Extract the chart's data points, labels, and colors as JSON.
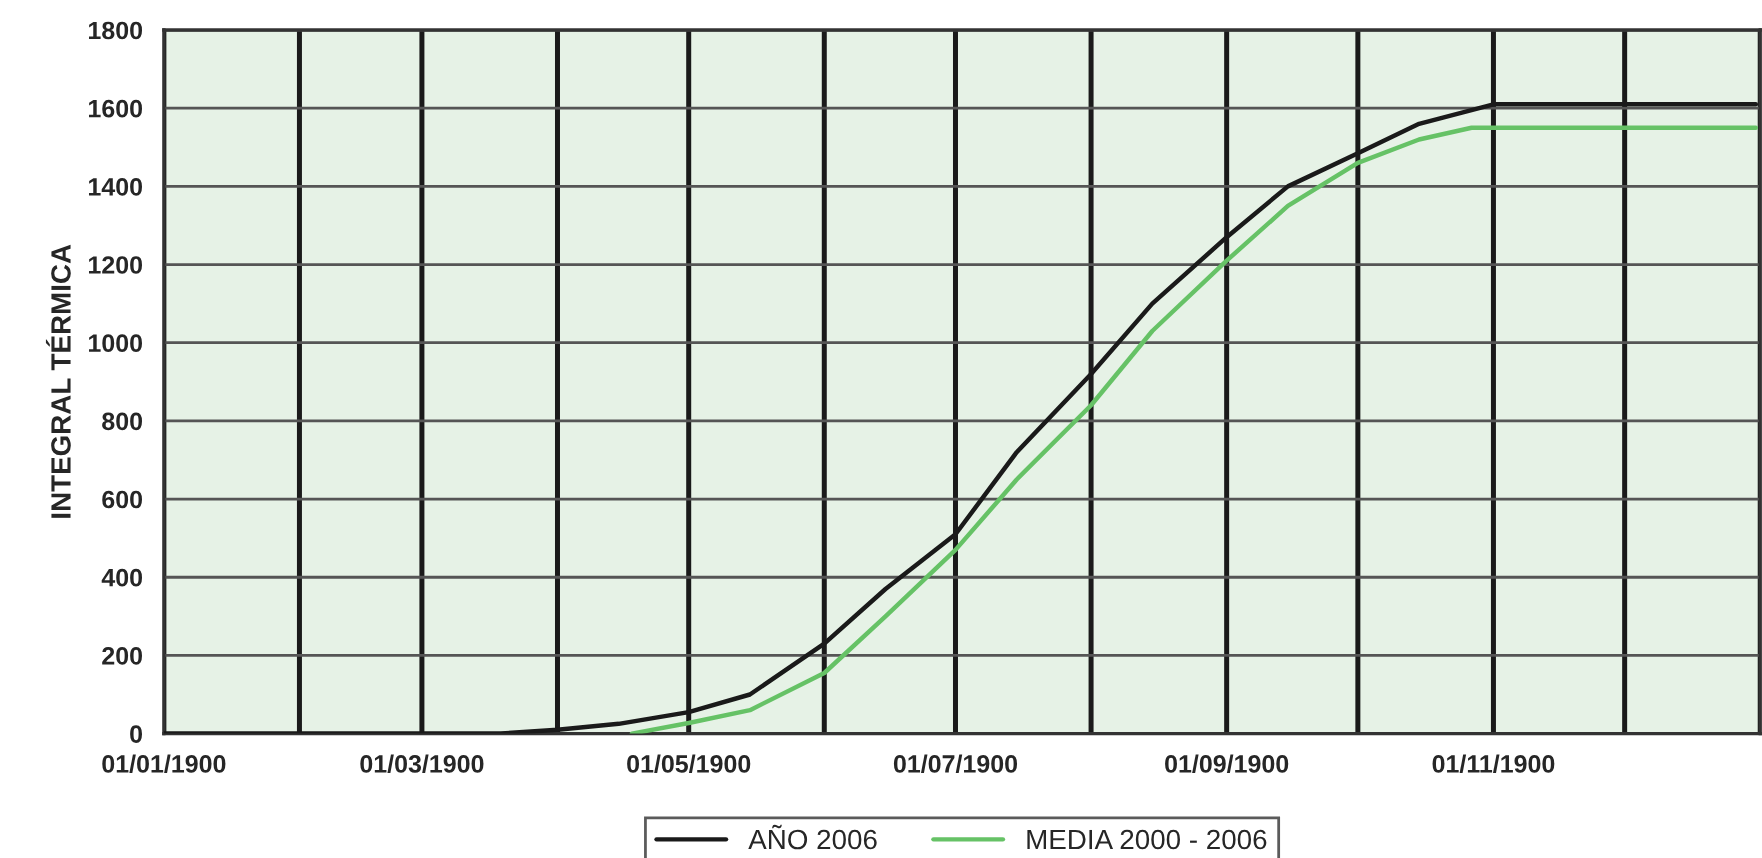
{
  "chart_data": {
    "type": "line",
    "ylabel": "INTEGRAL TÉRMICA",
    "xlim": [
      "1900-01-01",
      "1901-01-01"
    ],
    "xticks": [
      {
        "value": "1900-01-01",
        "label": "01/01/1900"
      },
      {
        "value": "1900-02-01",
        "label": null
      },
      {
        "value": "1900-03-01",
        "label": "01/03/1900"
      },
      {
        "value": "1900-04-01",
        "label": null
      },
      {
        "value": "1900-05-01",
        "label": "01/05/1900"
      },
      {
        "value": "1900-06-01",
        "label": null
      },
      {
        "value": "1900-07-01",
        "label": "01/07/1900"
      },
      {
        "value": "1900-08-01",
        "label": null
      },
      {
        "value": "1900-09-01",
        "label": "01/09/1900"
      },
      {
        "value": "1900-10-01",
        "label": null
      },
      {
        "value": "1900-11-01",
        "label": "01/11/1900"
      },
      {
        "value": "1900-12-01",
        "label": null
      },
      {
        "value": "1901-01-01",
        "label": null
      }
    ],
    "ylim": [
      0,
      1800
    ],
    "yticks": [
      0,
      200,
      400,
      600,
      800,
      1000,
      1200,
      1400,
      1600,
      1800
    ],
    "grid": true,
    "legend": "bottom",
    "line_style": "solid",
    "marker": "none",
    "series": [
      {
        "name": "AÑO 2006",
        "color": "#1a1a1a",
        "x": [
          "1900-01-01",
          "1900-03-19",
          "1900-04-01",
          "1900-04-15",
          "1900-05-01",
          "1900-05-15",
          "1900-06-01",
          "1900-06-15",
          "1900-07-01",
          "1900-07-15",
          "1900-08-01",
          "1900-08-15",
          "1900-09-01",
          "1900-09-15",
          "1900-10-01",
          "1900-10-15",
          "1900-11-01",
          "1900-12-31"
        ],
        "values": [
          0,
          0,
          10,
          25,
          55,
          100,
          230,
          370,
          510,
          720,
          920,
          1100,
          1270,
          1400,
          1485,
          1560,
          1610,
          1610
        ]
      },
      {
        "name": "MEDIA 2000 - 2006",
        "color": "#66c266",
        "x": [
          "1900-04-18",
          "1900-05-01",
          "1900-05-15",
          "1900-06-01",
          "1900-06-15",
          "1900-07-01",
          "1900-07-15",
          "1900-08-01",
          "1900-08-15",
          "1900-09-01",
          "1900-09-15",
          "1900-10-01",
          "1900-10-15",
          "1900-10-27",
          "1900-12-31"
        ],
        "values": [
          0,
          27,
          60,
          155,
          300,
          470,
          650,
          840,
          1030,
          1210,
          1350,
          1460,
          1520,
          1550,
          1550
        ]
      }
    ]
  }
}
